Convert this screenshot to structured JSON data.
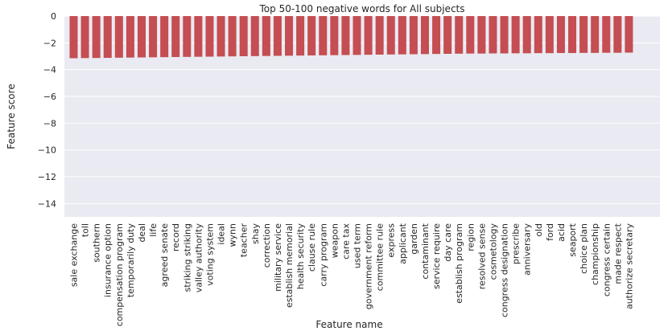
{
  "chart_data": {
    "type": "bar",
    "title": "Top 50-100 negative words for All subjects",
    "xlabel": "Feature name",
    "ylabel": "Feature score",
    "ylim": [
      -15,
      0
    ],
    "yticks": [
      0,
      -2,
      -4,
      -6,
      -8,
      -10,
      -12,
      -14
    ],
    "grid": true,
    "bar_color": "#c44e52",
    "background_color": "#eaeaf2",
    "categories": [
      "sale exchange",
      "toll",
      "southern",
      "insurance option",
      "compensation program",
      "temporarily duty",
      "deal",
      "life",
      "agreed senate",
      "record",
      "striking striking",
      "valley authority",
      "voting system",
      "ideal",
      "wynn",
      "teacher",
      "shay",
      "correction",
      "military service",
      "establish memorial",
      "health security",
      "clause rule",
      "carry program",
      "weapon",
      "care tax",
      "used term",
      "government reform",
      "committee rule",
      "express",
      "applicant",
      "garden",
      "contaminant",
      "service require",
      "day care",
      "establish program",
      "region",
      "resolved sense",
      "cosmetology",
      "congress designation",
      "prescribe",
      "anniversary",
      "old",
      "ford",
      "acid",
      "seaport",
      "choice plan",
      "championship",
      "congress certain",
      "made respect",
      "authorize secretary"
    ],
    "values": [
      -3.15,
      -3.14,
      -3.13,
      -3.12,
      -3.11,
      -3.1,
      -3.09,
      -3.08,
      -3.07,
      -3.06,
      -3.05,
      -3.04,
      -3.03,
      -3.02,
      -3.01,
      -3.0,
      -2.99,
      -2.98,
      -2.97,
      -2.96,
      -2.95,
      -2.94,
      -2.93,
      -2.92,
      -2.91,
      -2.9,
      -2.89,
      -2.88,
      -2.87,
      -2.86,
      -2.85,
      -2.84,
      -2.83,
      -2.82,
      -2.81,
      -2.8,
      -2.8,
      -2.79,
      -2.79,
      -2.78,
      -2.78,
      -2.77,
      -2.77,
      -2.76,
      -2.76,
      -2.75,
      -2.75,
      -2.74,
      -2.74,
      -2.73
    ]
  }
}
